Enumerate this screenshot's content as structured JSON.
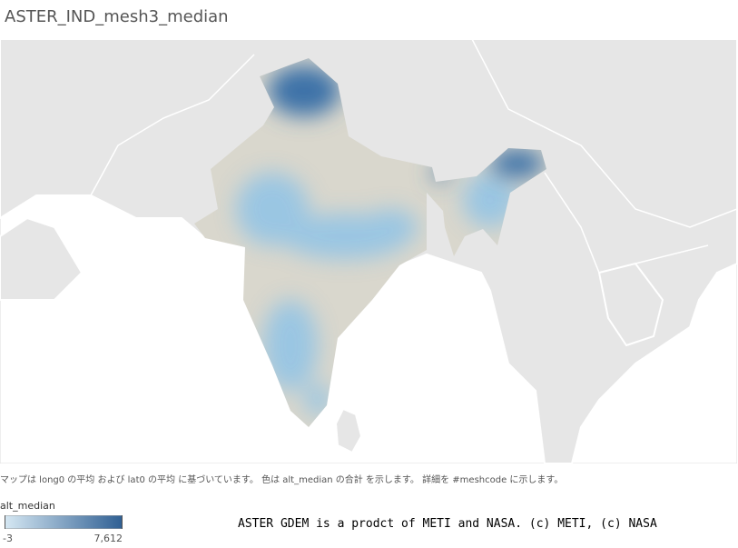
{
  "title": "ASTER_IND_mesh3_median",
  "caption": "マップは long0 の平均 および lat0 の平均 に基づいています。 色は alt_median の合計 を示します。 詳細を #meshcode に示します。",
  "legend": {
    "title": "alt_median",
    "min": -3,
    "max": {
      "value": 7612,
      "label": "7,612"
    },
    "colors": [
      "#d6e8f3",
      "#2f5f93"
    ]
  },
  "credit": "ASTER GDEM is a prodct of METI and NASA. (c) METI, (c) NASA"
}
